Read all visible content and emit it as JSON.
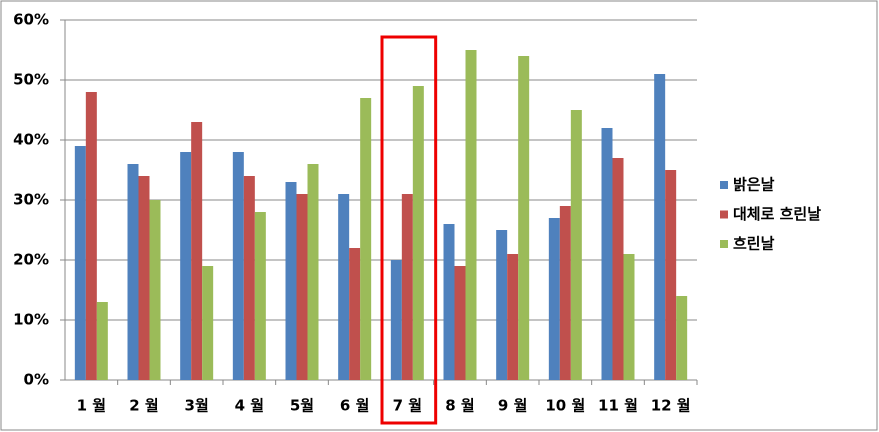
{
  "chart_data": {
    "type": "bar",
    "categories": [
      "1 월",
      "2 월",
      "3월",
      "4 월",
      "5월",
      "6 월",
      "7 월",
      "8 월",
      "9 월",
      "10 월",
      "11 월",
      "12 월"
    ],
    "series": [
      {
        "name": "밝은날",
        "color": "#4f81bd",
        "values": [
          39,
          36,
          38,
          38,
          33,
          31,
          20,
          26,
          25,
          27,
          42,
          51
        ]
      },
      {
        "name": "대체로 흐린날",
        "color": "#c0504d",
        "values": [
          48,
          34,
          43,
          34,
          31,
          22,
          31,
          19,
          21,
          29,
          37,
          35
        ]
      },
      {
        "name": "흐린날",
        "color": "#9bbb59",
        "values": [
          13,
          30,
          19,
          28,
          36,
          47,
          49,
          55,
          54,
          45,
          21,
          14
        ]
      }
    ],
    "ylim": [
      0,
      60
    ],
    "yticks": [
      {
        "value": 0,
        "label": "0%"
      },
      {
        "value": 10,
        "label": "10%"
      },
      {
        "value": 20,
        "label": "20%"
      },
      {
        "value": 30,
        "label": "30%"
      },
      {
        "value": 40,
        "label": "40%"
      },
      {
        "value": 50,
        "label": "50%"
      },
      {
        "value": 60,
        "label": "60%"
      }
    ],
    "grid": true,
    "legend": "right"
  }
}
